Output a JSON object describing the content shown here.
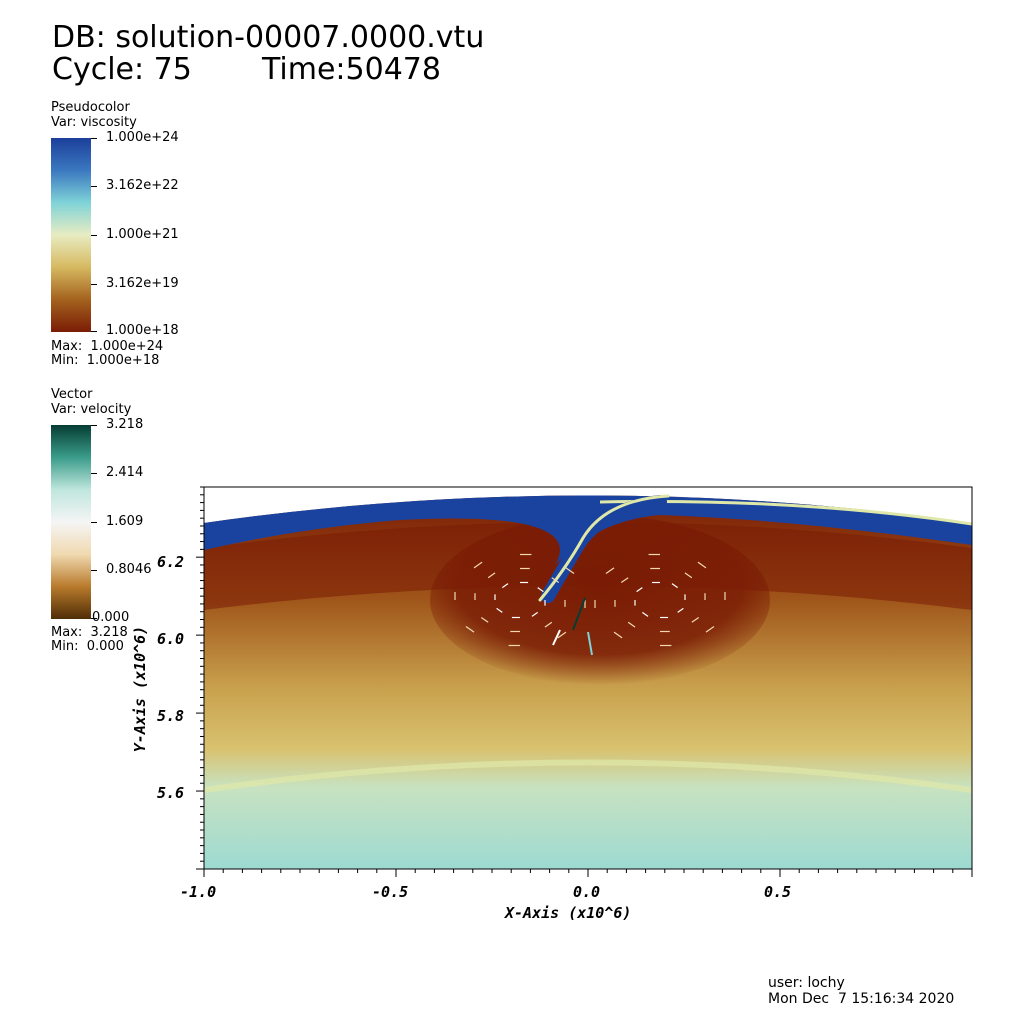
{
  "header": {
    "db_line": "DB: solution-00007.0000.vtu",
    "cycle_label": "Cycle: 75",
    "time_label": "Time:50478"
  },
  "legend_viscosity": {
    "plot_type": "Pseudocolor",
    "var_label": "Var: viscosity",
    "ticks": [
      "1.000e+24",
      "3.162e+22",
      "1.000e+21",
      "3.162e+19",
      "1.000e+18"
    ],
    "max_label": "Max:  1.000e+24",
    "min_label": "Min:  1.000e+18",
    "colors": [
      "#1b3f9a",
      "#3b78c0",
      "#7fd3d8",
      "#e8ecc2",
      "#d6b960",
      "#a4621e",
      "#7a1c05"
    ]
  },
  "legend_velocity": {
    "plot_type": "Vector",
    "var_label": "Var: velocity",
    "ticks": [
      "3.218",
      "2.414",
      "1.609",
      "0.8046",
      "0.000"
    ],
    "max_label": "Max:  3.218",
    "min_label": "Min:  0.000",
    "colors": [
      "#063d33",
      "#3a9c8a",
      "#bfe6dd",
      "#f5f5f5",
      "#f0d9b0",
      "#b87a2c",
      "#4f2e06"
    ]
  },
  "chart_data": {
    "type": "heatmap",
    "title": "",
    "xlabel": "X-Axis (x10^6)",
    "ylabel": "Y-Axis (x10^6)",
    "x_ticks": [
      "-1.0",
      "-0.5",
      "0.0",
      "0.5"
    ],
    "y_ticks": [
      "5.6",
      "5.8",
      "6.0",
      "6.2"
    ],
    "x_tick_values": [
      -1.0,
      -0.5,
      0.0,
      0.5
    ],
    "y_tick_values": [
      5.6,
      5.8,
      6.0,
      6.2
    ],
    "xlim": [
      -1.0,
      1.0
    ],
    "ylim": [
      5.4,
      6.38
    ],
    "field": "viscosity",
    "vector_field": "velocity",
    "colors": {
      "lithosphere": "#1a43a0",
      "weak_zone": "#dfe8a8",
      "upper_mantle": "#7a1c05",
      "transition": "#c9a24e",
      "lower_mantle": "#9ddad2"
    }
  },
  "footer": {
    "user_label": "user: lochy",
    "date_label": "Mon Dec  7 15:16:34 2020"
  }
}
